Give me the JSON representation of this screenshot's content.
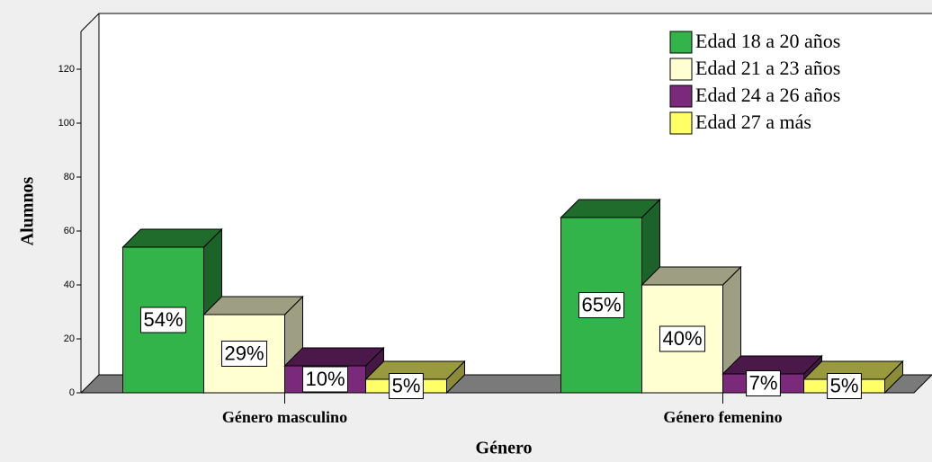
{
  "chart_data": {
    "type": "bar3d",
    "x_label": "Género",
    "y_label": "Alumnos",
    "categories": [
      "Género masculino",
      "Género femenino"
    ],
    "series": [
      {
        "name": "Edad 18 a 20 años",
        "color": "#33b44a",
        "values": [
          54,
          65
        ],
        "value_labels": [
          "54%",
          "65%"
        ]
      },
      {
        "name": "Edad 21 a 23 años",
        "color": "#ffffd2",
        "values": [
          29,
          40
        ],
        "value_labels": [
          "29%",
          "40%"
        ]
      },
      {
        "name": "Edad 24 a 26 años",
        "color": "#7b2a7b",
        "values": [
          10,
          7
        ],
        "value_labels": [
          "10%",
          "7%"
        ]
      },
      {
        "name": "Edad 27 a más",
        "color": "#ffff66",
        "values": [
          5,
          5
        ],
        "value_labels": [
          "5%",
          "5%"
        ]
      }
    ],
    "ylim": [
      0,
      134
    ],
    "yticks": [
      0,
      20,
      40,
      60,
      80,
      100,
      120
    ],
    "legend": "upper right"
  }
}
